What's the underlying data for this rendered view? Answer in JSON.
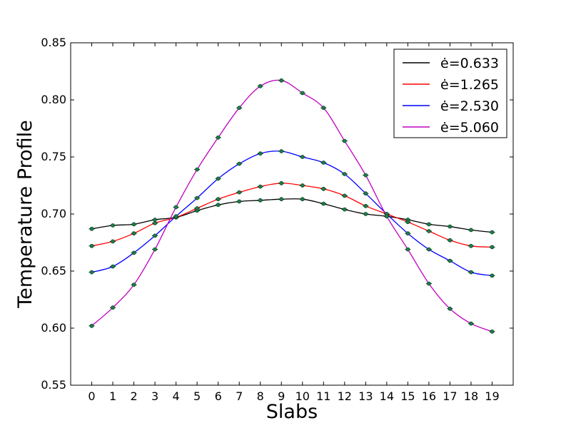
{
  "chart_data": {
    "type": "line",
    "title": "",
    "xlabel": "Slabs",
    "ylabel": "Temperature Profile",
    "xlim": [
      -1,
      20
    ],
    "ylim": [
      0.55,
      0.85
    ],
    "x_ticks": [
      0,
      1,
      2,
      3,
      4,
      5,
      6,
      7,
      8,
      9,
      10,
      11,
      12,
      13,
      14,
      15,
      16,
      17,
      18,
      19
    ],
    "y_ticks": [
      0.55,
      0.6,
      0.65,
      0.7,
      0.75,
      0.8,
      0.85
    ],
    "y_tick_labels": [
      "0.55",
      "0.60",
      "0.65",
      "0.70",
      "0.75",
      "0.80",
      "0.85"
    ],
    "grid": false,
    "legend_position": "top-right",
    "x": [
      0,
      1,
      2,
      3,
      4,
      5,
      6,
      7,
      8,
      9,
      10,
      11,
      12,
      13,
      14,
      15,
      16,
      17,
      18,
      19
    ],
    "series": [
      {
        "name": "ė=0.633",
        "color": "#000000",
        "values": [
          0.687,
          0.69,
          0.691,
          0.695,
          0.697,
          0.703,
          0.708,
          0.711,
          0.712,
          0.713,
          0.713,
          0.709,
          0.704,
          0.7,
          0.698,
          0.695,
          0.691,
          0.689,
          0.686,
          0.684
        ]
      },
      {
        "name": "ė=1.265",
        "color": "#ff0000",
        "values": [
          0.672,
          0.676,
          0.683,
          0.692,
          0.697,
          0.705,
          0.713,
          0.719,
          0.724,
          0.727,
          0.725,
          0.722,
          0.716,
          0.707,
          0.7,
          0.693,
          0.685,
          0.677,
          0.672,
          0.671
        ]
      },
      {
        "name": "ė=2.530",
        "color": "#0000ff",
        "values": [
          0.649,
          0.654,
          0.666,
          0.681,
          0.698,
          0.714,
          0.731,
          0.744,
          0.753,
          0.755,
          0.75,
          0.745,
          0.735,
          0.718,
          0.7,
          0.683,
          0.669,
          0.659,
          0.649,
          0.646
        ]
      },
      {
        "name": "ė=5.060",
        "color": "#c000c0",
        "values": [
          0.602,
          0.618,
          0.638,
          0.669,
          0.706,
          0.739,
          0.767,
          0.793,
          0.812,
          0.817,
          0.806,
          0.793,
          0.764,
          0.734,
          0.698,
          0.669,
          0.639,
          0.617,
          0.604,
          0.597
        ]
      }
    ]
  }
}
